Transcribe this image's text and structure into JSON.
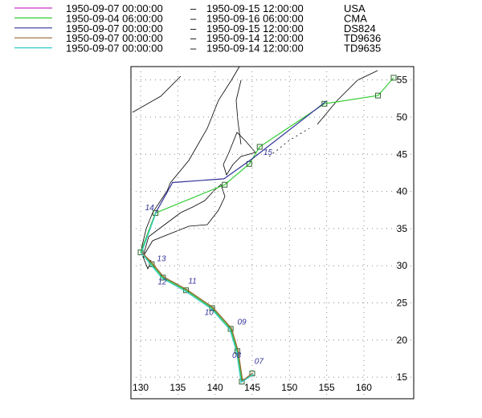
{
  "chart_data": {
    "type": "track-map",
    "legend": [
      {
        "start": "1950-09-07 00:00:00",
        "end": "1950-09-15 12:00:00",
        "name": "USA",
        "color": "#cc33cc"
      },
      {
        "start": "1950-09-04 06:00:00",
        "end": "1950-09-16 06:00:00",
        "name": "CMA",
        "color": "#33cc33"
      },
      {
        "start": "1950-09-07 00:00:00",
        "end": "1950-09-15 12:00:00",
        "name": "DS824",
        "color": "#333399"
      },
      {
        "start": "1950-09-07 00:00:00",
        "end": "1950-09-14 12:00:00",
        "name": "TD9636",
        "color": "#996633"
      },
      {
        "start": "1950-09-07 00:00:00",
        "end": "1950-09-14 12:00:00",
        "name": "TD9635",
        "color": "#33cccc"
      }
    ],
    "separator": "–",
    "xlim": [
      128.7,
      166.7
    ],
    "ylim": [
      12.1,
      56.8
    ],
    "xticks": [
      130,
      135,
      140,
      145,
      150,
      155,
      160
    ],
    "yticks": [
      15,
      20,
      25,
      30,
      35,
      40,
      45,
      50,
      55
    ],
    "grid": true,
    "tracks": [
      {
        "series": 0,
        "lon": [
          145,
          143.6,
          143,
          142.1,
          139.6,
          136.1,
          133,
          131.5,
          130,
          132
        ],
        "lat": [
          15.5,
          14.4,
          18.5,
          21.5,
          24.3,
          26.7,
          28.4,
          30.2,
          31.8,
          37.1
        ]
      },
      {
        "series": 1,
        "lon": [
          145,
          143.6,
          143,
          142.1,
          139.6,
          136.1,
          133,
          131.5,
          130,
          132,
          141.3,
          144.6,
          146,
          154.7,
          161.9,
          164
        ],
        "lat": [
          15.5,
          14.4,
          18.5,
          21.5,
          24.3,
          26.7,
          28.4,
          30.2,
          31.8,
          37.1,
          40.9,
          43.7,
          46,
          51.8,
          52.9,
          55.3
        ]
      },
      {
        "series": 2,
        "lon": [
          132,
          134.3,
          141.2,
          145,
          154.9
        ],
        "lat": [
          37.1,
          41.2,
          41.7,
          44.4,
          52.1
        ]
      },
      {
        "series": 3,
        "lon": [
          145.1,
          143.7,
          143.1,
          142.2,
          139.7,
          136.2,
          133.1,
          131.6,
          130.1
        ],
        "lat": [
          15.6,
          14.5,
          18.6,
          21.6,
          24.4,
          26.8,
          28.5,
          30.3,
          31.9
        ]
      },
      {
        "series": 4,
        "lon": [
          145.2,
          143.5,
          142.9,
          142,
          139.5,
          136,
          132.9,
          131.4,
          130.1,
          132.1
        ],
        "lat": [
          15.4,
          14.3,
          18.4,
          21.4,
          24.2,
          26.6,
          28.3,
          30.1,
          31.7,
          37.2
        ]
      }
    ],
    "day_labels": [
      {
        "text": "07",
        "lon": 145.3,
        "lat": 16.8
      },
      {
        "text": "08",
        "lon": 142.3,
        "lat": 17.6
      },
      {
        "text": "09",
        "lon": 143,
        "lat": 22.1
      },
      {
        "text": "10",
        "lon": 138.6,
        "lat": 23.4
      },
      {
        "text": "11",
        "lon": 136.4,
        "lat": 27.6
      },
      {
        "text": "12",
        "lon": 132.3,
        "lat": 27.5
      },
      {
        "text": "13",
        "lon": 132.2,
        "lat": 30.6
      },
      {
        "text": "14",
        "lon": 130.6,
        "lat": 37.5
      },
      {
        "text": "15",
        "lon": 146.5,
        "lat": 44.9
      }
    ]
  }
}
